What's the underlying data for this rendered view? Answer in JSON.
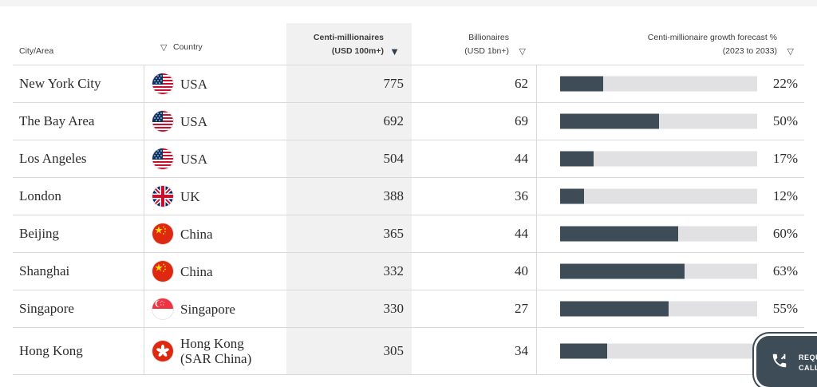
{
  "table": {
    "headers": {
      "city": "City/Area",
      "country": "Country",
      "centi_line1": "Centi-millionaires",
      "centi_line2": "(USD 100m+)",
      "billionaires_line1": "Billionaires",
      "billionaires_line2": "(USD 1bn+)",
      "growth_line1": "Centi-millionaire growth forecast %",
      "growth_line2": "(2023 to 2033)"
    },
    "sort_icons": {
      "country": "▽",
      "centi": "▼",
      "billionaires": "▽",
      "growth": "▽"
    },
    "rows": [
      {
        "city": "New York City",
        "flag": "usa-flag-icon",
        "country": "USA",
        "centi": "775",
        "billionaires": "62",
        "growth": 22,
        "growth_label": "22%"
      },
      {
        "city": "The Bay Area",
        "flag": "usa-flag-icon",
        "country": "USA",
        "centi": "692",
        "billionaires": "69",
        "growth": 50,
        "growth_label": "50%"
      },
      {
        "city": "Los Angeles",
        "flag": "usa-flag-icon",
        "country": "USA",
        "centi": "504",
        "billionaires": "44",
        "growth": 17,
        "growth_label": "17%"
      },
      {
        "city": "London",
        "flag": "uk-flag-icon",
        "country": "UK",
        "centi": "388",
        "billionaires": "36",
        "growth": 12,
        "growth_label": "12%"
      },
      {
        "city": "Beijing",
        "flag": "china-flag-icon",
        "country": "China",
        "centi": "365",
        "billionaires": "44",
        "growth": 60,
        "growth_label": "60%"
      },
      {
        "city": "Shanghai",
        "flag": "china-flag-icon",
        "country": "China",
        "centi": "332",
        "billionaires": "40",
        "growth": 63,
        "growth_label": "63%"
      },
      {
        "city": "Singapore",
        "flag": "singapore-flag-icon",
        "country": "Singapore",
        "centi": "330",
        "billionaires": "27",
        "growth": 55,
        "growth_label": "55%"
      },
      {
        "city": "Hong Kong",
        "flag": "hongkong-flag-icon",
        "country_line1": "Hong Kong",
        "country_line2": "(SAR China)",
        "centi": "305",
        "billionaires": "34",
        "growth": 24,
        "growth_label": ""
      }
    ]
  },
  "call_button": {
    "icon": "phone-callback-icon",
    "line1": "REQU",
    "line2": "CALL"
  },
  "colors": {
    "bar_fill": "#3d4c57",
    "bar_track": "#e1e1e3",
    "sorted_column_bg": "#f1f1f1"
  }
}
